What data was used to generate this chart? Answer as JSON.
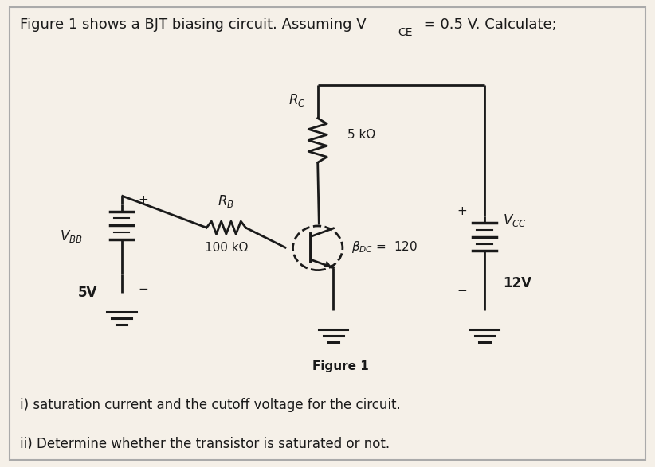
{
  "bg_color": "#f5f0e8",
  "border_color": "#cccccc",
  "line_color": "#1a1a1a",
  "fig_label": "Figure 1",
  "question_i": "i) saturation current and the cutoff voltage for the circuit.",
  "question_ii": "ii) Determine whether the transistor is saturated or not.",
  "RB_val": "100 kΩ",
  "RC_val": "5 kΩ",
  "beta_val": "= 120",
  "VBB_val": "5V",
  "VCC_val": "12V",
  "font_size_title": 13,
  "font_size_labels": 11,
  "font_size_questions": 12
}
